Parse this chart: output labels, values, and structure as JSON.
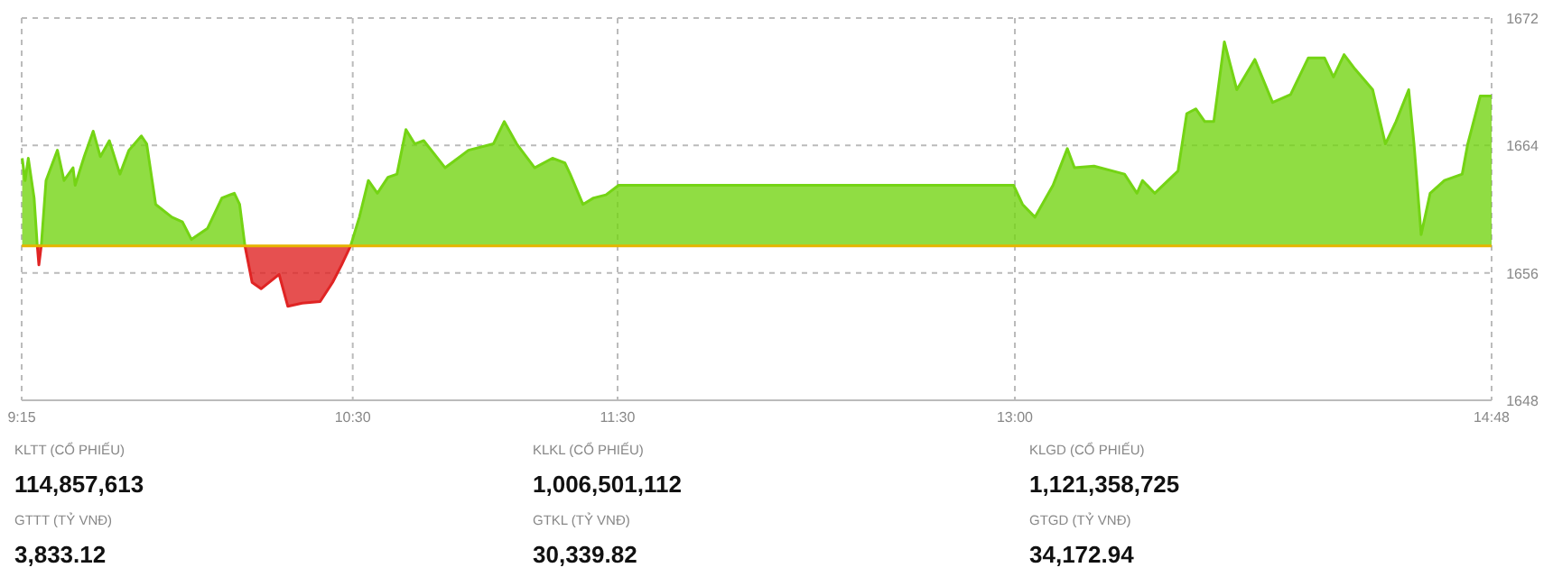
{
  "chart_data": [
    {
      "type": "area",
      "xlim": [
        9.25,
        14.8
      ],
      "ylim": [
        1648,
        1672
      ],
      "xticks": [
        {
          "value": 9.25,
          "label": "9:15"
        },
        {
          "value": 10.5,
          "label": "10:30"
        },
        {
          "value": 11.5,
          "label": "11:30"
        },
        {
          "value": 13,
          "label": "13:00"
        },
        {
          "value": 14.8,
          "label": "14:48"
        }
      ],
      "yticks": [
        1648,
        1656,
        1664,
        1672
      ],
      "grid": true,
      "ref_lines": [
        {
          "axis": "y",
          "value": 1657.7,
          "color": "#e6b400"
        }
      ],
      "series": [
        {
          "color": "#74d414",
          "x": [
            9.252,
            9.263,
            9.275,
            9.297,
            9.309,
            9.324,
            9.342,
            9.385,
            9.41,
            9.444,
            9.452,
            9.486,
            9.52,
            9.547,
            9.581,
            9.621,
            9.655,
            9.702,
            9.722,
            9.756,
            9.817,
            9.857,
            9.891,
            9.952,
            10.006,
            10.053,
            10.073,
            10.093,
            10.3,
            10.492,
            10.525,
            10.559,
            10.593,
            10.633,
            10.667,
            10.701,
            10.734,
            10.768,
            10.849,
            10.937,
            11.031,
            11.072,
            11.119,
            11.187,
            11.254,
            11.301,
            11.321,
            11.369,
            11.409,
            11.456,
            11.504,
            12.995,
            13.029,
            13.076,
            13.144,
            13.198,
            13.225,
            13.299,
            13.414,
            13.461,
            13.482,
            13.528,
            13.616,
            13.649,
            13.683,
            13.717,
            13.751,
            13.791,
            13.838,
            13.906,
            13.973,
            14.041,
            14.108,
            14.169,
            14.203,
            14.243,
            14.284,
            14.351,
            14.399,
            14.439,
            14.487,
            14.507,
            14.534,
            14.568,
            14.622,
            14.689,
            14.71,
            14.757,
            14.8
          ],
          "values": [
            1663.2,
            1661.8,
            1663.2,
            1660.7,
            1657.7,
            1657.7,
            1661.8,
            1663.7,
            1661.8,
            1662.6,
            1661.5,
            1663.3,
            1664.9,
            1663.3,
            1664.3,
            1662.2,
            1663.7,
            1664.6,
            1664.1,
            1660.3,
            1659.5,
            1659.2,
            1658.1,
            1658.8,
            1660.7,
            1661.0,
            1660.3,
            1657.7,
            null,
            1657.7,
            1659.5,
            1661.8,
            1661.0,
            1662.0,
            1662.2,
            1665.0,
            1664.1,
            1664.3,
            1662.6,
            1663.7,
            1664.1,
            1665.5,
            1664.1,
            1662.6,
            1663.2,
            1662.9,
            1662.2,
            1660.3,
            1660.7,
            1660.9,
            1661.5,
            1661.5,
            1660.3,
            1659.5,
            1661.5,
            1663.8,
            1662.6,
            1662.7,
            1662.2,
            1661.0,
            1661.8,
            1661.0,
            1662.4,
            1666.0,
            1666.3,
            1665.5,
            1665.5,
            1670.5,
            1667.5,
            1669.4,
            1666.7,
            1667.2,
            1669.5,
            1669.5,
            1668.3,
            1669.7,
            1668.8,
            1667.5,
            1664.1,
            1665.5,
            1667.5,
            1664.1,
            1658.4,
            1661.0,
            1661.8,
            1662.2,
            1664.1,
            1667.1,
            1667.1
          ]
        },
        {
          "color": "#e02424",
          "x": [
            9.309,
            9.315,
            9.324,
            9.7,
            10.093,
            10.12,
            10.154,
            10.222,
            10.255,
            10.309,
            10.377,
            10.424,
            10.458,
            10.492
          ],
          "values": [
            1657.7,
            1656.5,
            1657.7,
            null,
            1657.7,
            1655.4,
            1655.0,
            1655.9,
            1653.9,
            1654.1,
            1654.2,
            1655.4,
            1656.5,
            1657.7
          ]
        }
      ]
    },
    {
      "type": "other",
      "annotations": [
        "KLTT (CỔ PHIẾU)",
        "114,857,613",
        "KLKL (CỔ PHIẾU)",
        "1,006,501,112",
        "KLGD (CỔ PHIẾU)",
        "1,121,358,725",
        "GTTT (TỶ VNĐ)",
        "3,833.12",
        "GTKL (TỶ VNĐ)",
        "30,339.82",
        "GTGD (TỶ VNĐ)",
        "34,172.94"
      ]
    }
  ]
}
